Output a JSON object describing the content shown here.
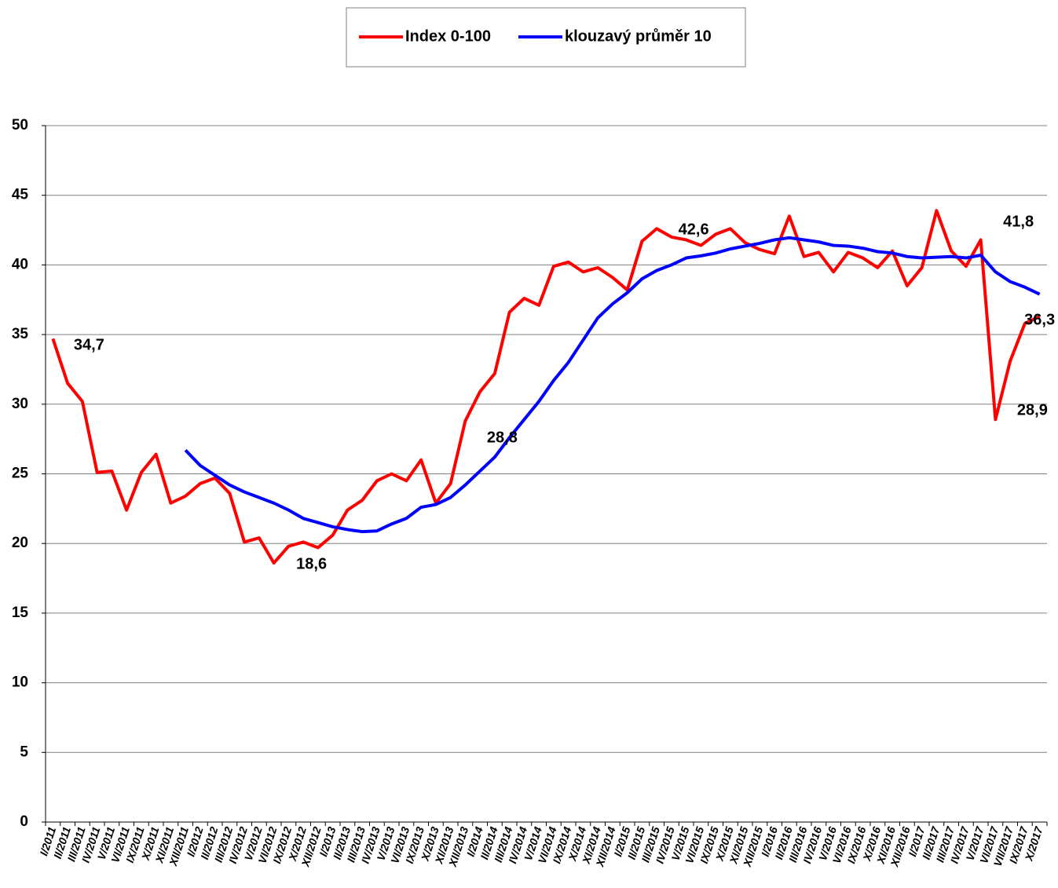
{
  "chart_data": {
    "type": "line",
    "categories": [
      "I/2011",
      "II/2011",
      "III/2011",
      "IV/2011",
      "V/2011",
      "VI/2011",
      "IX/2011",
      "X/2011",
      "XI/2011",
      "XII/2011",
      "I/2012",
      "II/2012",
      "III/2012",
      "IV/2012",
      "V/2012",
      "VI/2012",
      "IX/2012",
      "X/2012",
      "XII/2012",
      "I/2013",
      "II/2013",
      "III/2013",
      "IV/2013",
      "V/2013",
      "VI/2013",
      "IX/2013",
      "X/2013",
      "XI/2013",
      "XII/2013",
      "I/2014",
      "II/2014",
      "III/2014",
      "IV/2014",
      "V/2014",
      "VI/2014",
      "IX/2014",
      "X/2014",
      "XI/2014",
      "XII/2014",
      "I/2015",
      "II/2015",
      "III/2015",
      "IV/2015",
      "V/2015",
      "VI/2015",
      "IX/2015",
      "X/2015",
      "XI/2015",
      "XII/2015",
      "I/2016",
      "II/2016",
      "III/2016",
      "IV/2016",
      "V/2016",
      "VI/2016",
      "IX/2016",
      "X/2016",
      "XI/2016",
      "XII/2016",
      "I/2017",
      "II/2017",
      "III/2017",
      "IV/2017",
      "V/2017",
      "VI/2017",
      "VII/2017",
      "IX/2017",
      "X/2017"
    ],
    "series": [
      {
        "name": "Index 0-100",
        "color": "#ff0000",
        "values": [
          34.7,
          31.5,
          30.2,
          25.1,
          25.2,
          22.4,
          25.1,
          26.4,
          22.9,
          23.4,
          24.3,
          24.7,
          23.6,
          20.1,
          20.4,
          18.6,
          19.8,
          20.1,
          19.7,
          20.6,
          22.4,
          23.1,
          24.5,
          25.0,
          24.5,
          26.0,
          22.9,
          24.3,
          28.8,
          30.9,
          32.2,
          36.6,
          37.6,
          37.1,
          39.9,
          40.2,
          39.5,
          39.8,
          39.1,
          38.2,
          41.7,
          42.6,
          42.0,
          41.8,
          41.4,
          42.2,
          42.6,
          41.6,
          41.1,
          40.8,
          43.5,
          40.6,
          40.9,
          39.5,
          40.9,
          40.5,
          39.8,
          41.0,
          38.5,
          39.8,
          43.9,
          41.0,
          39.9,
          41.8,
          28.9,
          33.1,
          35.8,
          36.3
        ],
        "value_labels": [
          "34,7",
          null,
          null,
          null,
          null,
          null,
          null,
          null,
          null,
          null,
          null,
          null,
          null,
          null,
          null,
          "18,6",
          null,
          null,
          null,
          null,
          null,
          null,
          null,
          null,
          null,
          null,
          null,
          null,
          "28,8",
          null,
          null,
          null,
          null,
          null,
          null,
          null,
          null,
          null,
          null,
          null,
          null,
          "42,6",
          null,
          null,
          null,
          null,
          null,
          null,
          null,
          null,
          null,
          null,
          null,
          null,
          null,
          null,
          null,
          null,
          null,
          null,
          null,
          null,
          null,
          "41,8",
          "28,9",
          null,
          null,
          "36,3"
        ]
      },
      {
        "name": "klouzavý průměr 10",
        "color": "#0000ff",
        "values": [
          null,
          null,
          null,
          null,
          null,
          null,
          null,
          null,
          null,
          26.7,
          25.6,
          24.9,
          24.2,
          23.7,
          23.3,
          22.9,
          22.4,
          21.8,
          21.5,
          21.2,
          21.0,
          20.85,
          20.9,
          21.4,
          21.8,
          22.6,
          22.8,
          23.3,
          24.2,
          25.2,
          26.2,
          27.6,
          28.9,
          30.2,
          31.7,
          33.0,
          34.6,
          36.2,
          37.2,
          38.0,
          39.0,
          39.6,
          40.0,
          40.5,
          40.65,
          40.85,
          41.15,
          41.35,
          41.55,
          41.8,
          41.95,
          41.8,
          41.65,
          41.4,
          41.35,
          41.2,
          40.95,
          40.85,
          40.6,
          40.5,
          40.55,
          40.6,
          40.5,
          40.7,
          39.5,
          38.8,
          38.4,
          37.9
        ]
      }
    ],
    "ylim": [
      0,
      50
    ],
    "yticks": [
      0,
      5,
      10,
      15,
      20,
      25,
      30,
      35,
      40,
      45,
      50
    ],
    "grid": true,
    "legend": "top"
  }
}
